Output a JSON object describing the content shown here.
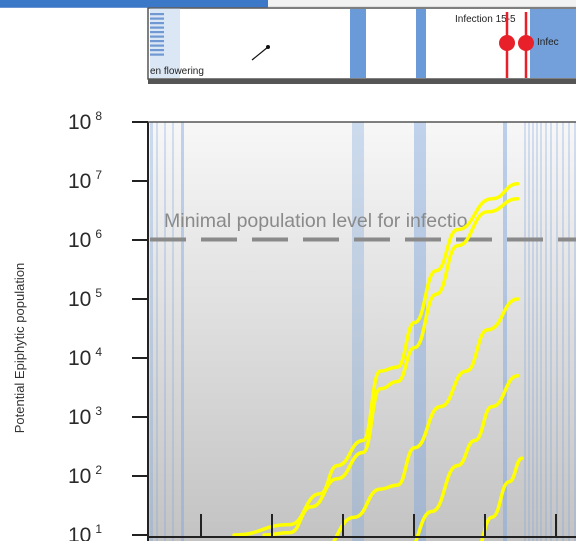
{
  "chart_data": {
    "type": "line",
    "ylabel": "Potential Epiphytic population",
    "y_scale": "log",
    "y_ticks": [
      {
        "base": "10",
        "exp": "1",
        "value": 10
      },
      {
        "base": "10",
        "exp": "2",
        "value": 100
      },
      {
        "base": "10",
        "exp": "3",
        "value": 1000
      },
      {
        "base": "10",
        "exp": "4",
        "value": 10000
      },
      {
        "base": "10",
        "exp": "5",
        "value": 100000
      },
      {
        "base": "10",
        "exp": "6",
        "value": 1000000
      },
      {
        "base": "10",
        "exp": "7",
        "value": 10000000
      },
      {
        "base": "10",
        "exp": "8",
        "value": 100000000
      }
    ],
    "ylim": [
      10,
      100000000
    ],
    "threshold": {
      "label": "Minimal population level for infectio",
      "value": 1000000,
      "style": "dashed",
      "color": "#8a8a8a"
    },
    "series_color": "#ffff00",
    "series": [
      {
        "values": [
          [
            0.2,
            10
          ],
          [
            0.33,
            15
          ],
          [
            0.4,
            50
          ],
          [
            0.44,
            150
          ],
          [
            0.5,
            400
          ],
          [
            0.54,
            6000
          ],
          [
            0.58,
            7000
          ],
          [
            0.62,
            40000
          ],
          [
            0.67,
            300000
          ],
          [
            0.72,
            1500000
          ],
          [
            0.8,
            5000000
          ],
          [
            0.86,
            9000000
          ]
        ]
      },
      {
        "values": [
          [
            0.27,
            10
          ],
          [
            0.33,
            11
          ],
          [
            0.38,
            30
          ],
          [
            0.44,
            90
          ],
          [
            0.5,
            250
          ],
          [
            0.54,
            3000
          ],
          [
            0.58,
            4000
          ],
          [
            0.62,
            15000
          ],
          [
            0.67,
            120000
          ],
          [
            0.72,
            800000
          ],
          [
            0.79,
            3000000
          ],
          [
            0.86,
            5000000
          ]
        ]
      },
      {
        "values": [
          [
            0.4,
            5
          ],
          [
            0.48,
            20
          ],
          [
            0.54,
            60
          ],
          [
            0.58,
            70
          ],
          [
            0.62,
            300
          ],
          [
            0.68,
            1500
          ],
          [
            0.74,
            6000
          ],
          [
            0.79,
            30000
          ],
          [
            0.86,
            100000
          ]
        ]
      },
      {
        "values": [
          [
            0.6,
            5
          ],
          [
            0.66,
            25
          ],
          [
            0.72,
            150
          ],
          [
            0.76,
            400
          ],
          [
            0.8,
            1500
          ],
          [
            0.86,
            5000
          ]
        ]
      },
      {
        "values": [
          [
            0.76,
            5
          ],
          [
            0.8,
            20
          ],
          [
            0.84,
            80
          ],
          [
            0.87,
            200
          ]
        ]
      }
    ],
    "legend": "none",
    "grid": false,
    "background": "gray gradient with blue vertical bands",
    "timeline": {
      "annotations": [
        {
          "text": "en flowering"
        },
        {
          "text": "Infection 15-5"
        },
        {
          "text": "Infec"
        }
      ]
    }
  }
}
